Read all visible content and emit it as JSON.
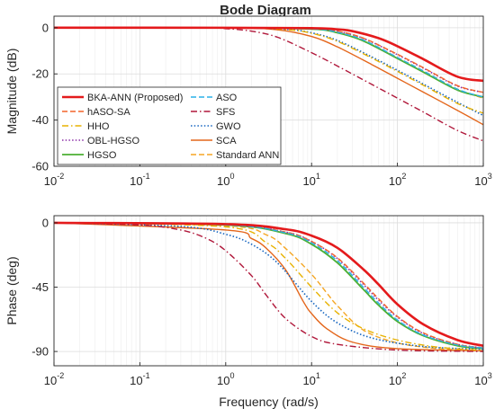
{
  "title": "Bode Diagram",
  "colors": {
    "axes": "#262626",
    "grid": "#dcdcdc",
    "grid_minor": "#ececec",
    "background": "#ffffff"
  },
  "chart_data": [
    {
      "type": "line",
      "title": "Bode Diagram",
      "xlabel": "",
      "ylabel": "Magnitude (dB)",
      "xscale": "log",
      "xlim": [
        0.01,
        1000
      ],
      "ylim": [
        -60,
        5
      ],
      "xticks": [
        0.01,
        0.1,
        1,
        10,
        100,
        1000
      ],
      "xticklabels": [
        {
          "b": "10",
          "e": "-2"
        },
        {
          "b": "10",
          "e": "-1"
        },
        {
          "b": "10",
          "e": "0"
        },
        {
          "b": "10",
          "e": "1"
        },
        {
          "b": "10",
          "e": "2"
        },
        {
          "b": "10",
          "e": "3"
        }
      ],
      "yticks": [
        0,
        -20,
        -40,
        -60
      ],
      "yticklabels": [
        "0",
        "-20",
        "-40",
        "-60"
      ],
      "grid": true,
      "legend_position": "bottom-left",
      "legend_columns": 2,
      "series": [
        {
          "name": "BKA-ANN (Proposed)",
          "color": "#e41a1c",
          "dash": "solid",
          "width": 2.6,
          "x": [
            0.01,
            1,
            10,
            20,
            30,
            60,
            100,
            200,
            500,
            1000
          ],
          "y": [
            0,
            -0.01,
            -0.2,
            -0.7,
            -1.5,
            -4.5,
            -8,
            -13.6,
            -21.2,
            -23
          ]
        },
        {
          "name": "ASO",
          "color": "#2ab0e8",
          "dash": "dashed",
          "width": 1.4,
          "x": [
            0.01,
            1,
            10,
            20,
            40,
            100,
            200,
            500,
            1000
          ],
          "y": [
            0,
            -0.01,
            -0.5,
            -2,
            -5.3,
            -12.9,
            -18.7,
            -26.6,
            -30
          ]
        },
        {
          "name": "hASO-SA",
          "color": "#f4642a",
          "dash": "dashed",
          "width": 1.4,
          "x": [
            0.01,
            1,
            10,
            20,
            40,
            100,
            200,
            500,
            1000
          ],
          "y": [
            0,
            -0.01,
            -0.4,
            -1.5,
            -4.5,
            -11.5,
            -17.3,
            -25.1,
            -28
          ]
        },
        {
          "name": "SFS",
          "color": "#b0173a",
          "dash": "dashdot",
          "width": 1.4,
          "x": [
            0.01,
            0.5,
            1,
            2,
            4,
            10,
            20,
            50,
            100,
            200,
            500,
            1000
          ],
          "y": [
            0,
            -0.1,
            -0.4,
            -1.5,
            -4.1,
            -10.8,
            -16.6,
            -24.5,
            -30.5,
            -36.5,
            -44.5,
            -49
          ]
        },
        {
          "name": "HHO",
          "color": "#e8b200",
          "dash": "dashdot",
          "width": 1.4,
          "x": [
            0.01,
            1,
            5,
            10,
            20,
            50,
            100,
            200,
            500,
            1000
          ],
          "y": [
            0,
            -0.05,
            -0.8,
            -2.4,
            -5.9,
            -13.1,
            -18.9,
            -24.9,
            -32.8,
            -37
          ]
        },
        {
          "name": "GWO",
          "color": "#1565c0",
          "dash": "dotted",
          "width": 1.6,
          "x": [
            0.01,
            1,
            5,
            10,
            20,
            50,
            100,
            200,
            500,
            1000
          ],
          "y": [
            0,
            -0.04,
            -0.7,
            -2.2,
            -5.5,
            -12.6,
            -18.4,
            -24.4,
            -32.3,
            -38
          ]
        },
        {
          "name": "OBL-HGSO",
          "color": "#8b2fa8",
          "dash": "dotted",
          "width": 1.6,
          "x": [
            0.01,
            1,
            10,
            20,
            40,
            100,
            200,
            500,
            1000
          ],
          "y": [
            0,
            -0.01,
            -0.4,
            -1.6,
            -4.6,
            -11.7,
            -17.5,
            -25.3,
            -28
          ]
        },
        {
          "name": "SCA",
          "color": "#e4661b",
          "dash": "solid",
          "width": 1.4,
          "x": [
            0.01,
            1,
            4,
            10,
            20,
            50,
            100,
            200,
            500,
            1000
          ],
          "y": [
            0,
            -0.05,
            -0.9,
            -3.8,
            -8.3,
            -15.9,
            -21.9,
            -27.9,
            -35.8,
            -42
          ]
        },
        {
          "name": "HGSO",
          "color": "#4caf33",
          "dash": "solid",
          "width": 1.8,
          "x": [
            0.01,
            1,
            10,
            20,
            40,
            100,
            200,
            500,
            1000
          ],
          "y": [
            0,
            -0.01,
            -0.6,
            -2.2,
            -5.7,
            -13.3,
            -19.2,
            -27,
            -30
          ]
        },
        {
          "name": "Standard ANN",
          "color": "#f5a623",
          "dash": "dashed",
          "width": 1.4,
          "x": [
            0.01,
            1,
            10,
            20,
            40,
            100,
            200,
            500,
            1000
          ],
          "y": [
            0,
            -0.01,
            -0.6,
            -2,
            -5.3,
            -12.9,
            -18.7,
            -26.6,
            -30.5
          ]
        }
      ]
    },
    {
      "type": "line",
      "title": "",
      "xlabel": "Frequency  (rad/s)",
      "ylabel": "Phase (deg)",
      "xscale": "log",
      "xlim": [
        0.01,
        1000
      ],
      "ylim": [
        -100,
        5
      ],
      "xticks": [
        0.01,
        0.1,
        1,
        10,
        100,
        1000
      ],
      "xticklabels": [
        {
          "b": "10",
          "e": "-2"
        },
        {
          "b": "10",
          "e": "-1"
        },
        {
          "b": "10",
          "e": "0"
        },
        {
          "b": "10",
          "e": "1"
        },
        {
          "b": "10",
          "e": "2"
        },
        {
          "b": "10",
          "e": "3"
        }
      ],
      "yticks": [
        0,
        -45,
        -90
      ],
      "yticklabels": [
        "0",
        "-45",
        "-90"
      ],
      "grid": true,
      "series": [
        {
          "name": "BKA-ANN (Proposed)",
          "color": "#e41a1c",
          "dash": "solid",
          "width": 2.6,
          "x": [
            0.01,
            1,
            5,
            10,
            20,
            40,
            60,
            100,
            200,
            500,
            1000
          ],
          "y": [
            0,
            -0.9,
            -4.5,
            -9,
            -17.5,
            -32.5,
            -43,
            -57,
            -71,
            -82,
            -86
          ]
        },
        {
          "name": "ASO",
          "color": "#2ab0e8",
          "dash": "dashed",
          "width": 1.4,
          "x": [
            0.01,
            1,
            5,
            10,
            20,
            40,
            60,
            100,
            200,
            500,
            1000
          ],
          "y": [
            0,
            -1.4,
            -7,
            -14,
            -26.5,
            -45,
            -56,
            -68,
            -78.5,
            -85.5,
            -87.5
          ]
        },
        {
          "name": "hASO-SA",
          "color": "#f4642a",
          "dash": "dashed",
          "width": 1.4,
          "x": [
            0.01,
            1,
            5,
            10,
            20,
            40,
            60,
            100,
            200,
            500,
            1000
          ],
          "y": [
            0,
            -1.3,
            -6.5,
            -13,
            -24.5,
            -42,
            -53,
            -65.5,
            -77,
            -85,
            -87.5
          ]
        },
        {
          "name": "SFS",
          "color": "#b0173a",
          "dash": "dashdot",
          "width": 1.4,
          "x": [
            0.01,
            0.1,
            0.3,
            0.6,
            1,
            2,
            3,
            5,
            10,
            20,
            100,
            1000
          ],
          "y": [
            0,
            -1.5,
            -5,
            -11,
            -19.5,
            -37,
            -51,
            -67,
            -79.5,
            -85,
            -89,
            -90
          ]
        },
        {
          "name": "HHO",
          "color": "#e8b200",
          "dash": "dashdot",
          "width": 1.4,
          "x": [
            0.01,
            1,
            3,
            5,
            10,
            20,
            40,
            100,
            300,
            1000
          ],
          "y": [
            0,
            -2.8,
            -14,
            -25,
            -45,
            -63,
            -74,
            -82,
            -87,
            -89.2
          ]
        },
        {
          "name": "GWO",
          "color": "#1565c0",
          "dash": "dotted",
          "width": 1.6,
          "x": [
            0.01,
            0.3,
            1,
            2,
            4,
            10,
            20,
            50,
            200,
            1000
          ],
          "y": [
            0,
            -2.5,
            -8,
            -15,
            -28,
            -55,
            -70,
            -80.5,
            -86.5,
            -88.5
          ]
        },
        {
          "name": "OBL-HGSO",
          "color": "#8b2fa8",
          "dash": "dotted",
          "width": 1.6,
          "x": [
            0.01,
            1,
            5,
            10,
            20,
            40,
            60,
            100,
            200,
            500,
            1000
          ],
          "y": [
            0,
            -1.3,
            -6.5,
            -13,
            -25,
            -43,
            -54,
            -66,
            -77.5,
            -85,
            -87.5
          ]
        },
        {
          "name": "SCA",
          "color": "#e4661b",
          "dash": "solid",
          "width": 1.4,
          "x": [
            0.01,
            1,
            2,
            3,
            5,
            8,
            10,
            15,
            30,
            100,
            1000
          ],
          "y": [
            0,
            -5,
            -11,
            -18,
            -33,
            -55,
            -63.5,
            -74,
            -83.5,
            -88,
            -89.5
          ]
        },
        {
          "name": "HGSO",
          "color": "#4caf33",
          "dash": "solid",
          "width": 1.8,
          "x": [
            0.01,
            1,
            5,
            10,
            20,
            40,
            60,
            100,
            200,
            500,
            1000
          ],
          "y": [
            0,
            -1.5,
            -7.5,
            -15,
            -28,
            -46.5,
            -57.5,
            -69,
            -79,
            -86,
            -88
          ]
        },
        {
          "name": "Standard ANN",
          "color": "#f5a623",
          "dash": "dashed",
          "width": 1.4,
          "x": [
            0.01,
            1,
            3,
            5,
            10,
            15,
            20,
            40,
            100,
            300,
            1000
          ],
          "y": [
            0,
            -2,
            -8.5,
            -18,
            -36,
            -49,
            -58,
            -75,
            -84,
            -88,
            -89.5
          ]
        }
      ]
    }
  ]
}
